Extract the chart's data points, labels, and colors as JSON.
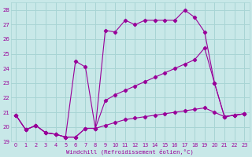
{
  "xlabel": "Windchill (Refroidissement éolien,°C)",
  "bg_color": "#c8e8e8",
  "grid_color": "#a8d4d4",
  "line_color": "#990099",
  "xlim": [
    -0.5,
    23.5
  ],
  "ylim": [
    19.0,
    28.5
  ],
  "yticks": [
    19,
    20,
    21,
    22,
    23,
    24,
    25,
    26,
    27,
    28
  ],
  "xticks": [
    0,
    1,
    2,
    3,
    4,
    5,
    6,
    7,
    8,
    9,
    10,
    11,
    12,
    13,
    14,
    15,
    16,
    17,
    18,
    19,
    20,
    21,
    22,
    23
  ],
  "s1_x": [
    0,
    1,
    2,
    3,
    4,
    5,
    6,
    7,
    8,
    9,
    10,
    11,
    12,
    13,
    14,
    15,
    16,
    17,
    18,
    19,
    20,
    21,
    22,
    23
  ],
  "s1_y": [
    20.8,
    19.8,
    20.1,
    19.6,
    19.5,
    19.3,
    19.3,
    19.9,
    19.9,
    26.6,
    26.5,
    27.3,
    27.0,
    27.3,
    27.3,
    27.3,
    27.3,
    28.0,
    27.5,
    26.5,
    23.0,
    20.7,
    20.8,
    20.9
  ],
  "s2_x": [
    0,
    1,
    2,
    3,
    4,
    5,
    6,
    7,
    8,
    9,
    10,
    11,
    12,
    13,
    14,
    15,
    16,
    17,
    18,
    19,
    20,
    21,
    22,
    23
  ],
  "s2_y": [
    20.8,
    19.8,
    20.1,
    19.6,
    19.5,
    19.3,
    24.5,
    24.1,
    19.9,
    21.8,
    22.2,
    22.5,
    22.8,
    23.1,
    23.4,
    23.7,
    24.0,
    24.3,
    24.6,
    25.4,
    23.0,
    20.7,
    20.8,
    20.9
  ],
  "s3_x": [
    0,
    1,
    2,
    3,
    4,
    5,
    6,
    7,
    8,
    9,
    10,
    11,
    12,
    13,
    14,
    15,
    16,
    17,
    18,
    19,
    20,
    21,
    22,
    23
  ],
  "s3_y": [
    20.8,
    19.8,
    20.1,
    19.6,
    19.5,
    19.3,
    19.3,
    19.9,
    19.9,
    20.1,
    20.3,
    20.5,
    20.6,
    20.7,
    20.8,
    20.9,
    21.0,
    21.1,
    21.2,
    21.3,
    21.0,
    20.7,
    20.8,
    20.9
  ]
}
